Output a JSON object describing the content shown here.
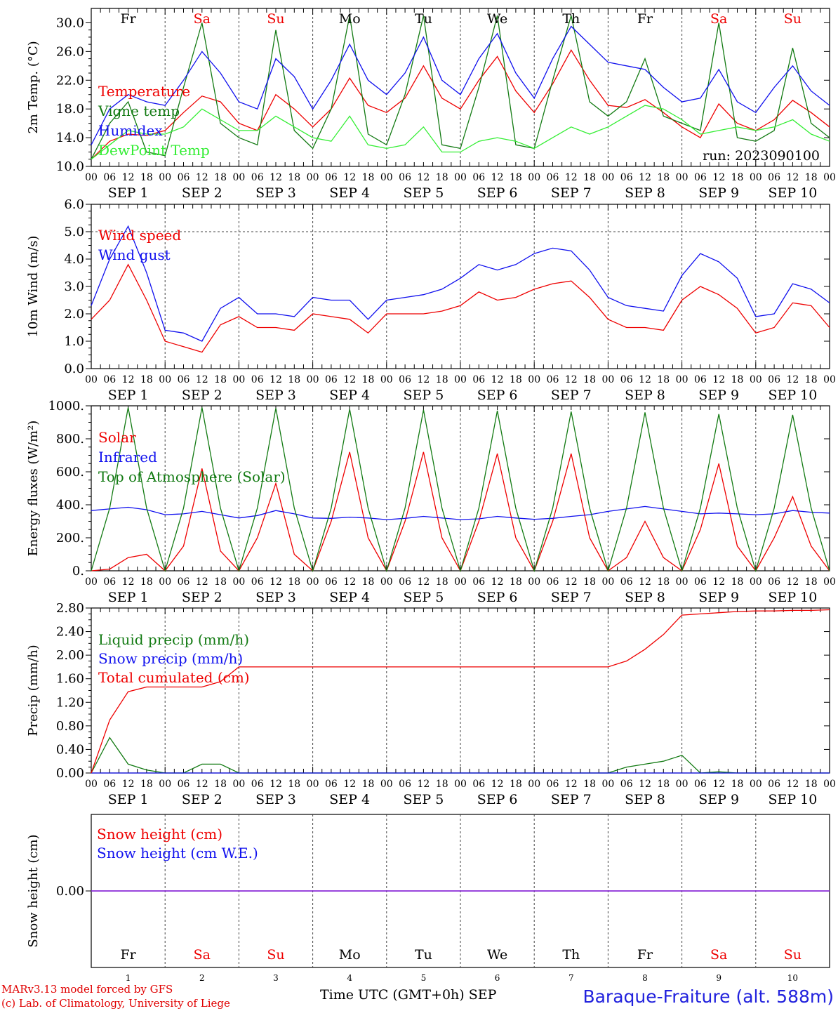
{
  "footer": {
    "credit_line1": "MARv3.13 model forced by GFS",
    "credit_line2": "(c) Lab. of Climatology, University of Liege",
    "x_axis_label": "Time UTC (GMT+0h) SEP",
    "station": "Baraque-Fraiture (alt. 588m)",
    "run": "run: 2023090100"
  },
  "time_axis": {
    "hour_ticks": [
      "00",
      "06",
      "12",
      "18"
    ],
    "end_tick": "00",
    "date_labels": [
      "SEP  1",
      "SEP  2",
      "SEP  3",
      "SEP  4",
      "SEP  5",
      "SEP  6",
      "SEP  7",
      "SEP  8",
      "SEP  9",
      "SEP 10"
    ],
    "weekdays": [
      "Fr",
      "Sa",
      "Su",
      "Mo",
      "Tu",
      "We",
      "Th",
      "Fr",
      "Sa",
      "Su"
    ],
    "weekend_flags": [
      false,
      true,
      true,
      false,
      false,
      false,
      false,
      false,
      true,
      true
    ],
    "day_numbers": [
      "1",
      "2",
      "3",
      "4",
      "5",
      "6",
      "7",
      "8",
      "9",
      "10"
    ]
  },
  "colors": {
    "red": "#ee0000",
    "blue": "#1010ee",
    "dkgreen": "#127a12",
    "ltgreen": "#33ee33",
    "purple": "#8a2be2",
    "weekend": "#ee0000",
    "grid": "#444444"
  },
  "chart_data": [
    {
      "type": "line",
      "ylabel": "2m Temp. (°C)",
      "ylim": [
        10,
        32
      ],
      "yticks": [
        10,
        14,
        18,
        22,
        26,
        30
      ],
      "ytick_labels": [
        "10.0",
        "14.0",
        "18.0",
        "22.0",
        "26.0",
        "30.0"
      ],
      "dashed_hline": null,
      "x": [
        "09-01 00",
        "09-01 06",
        "09-01 12",
        "09-01 18",
        "09-02 00",
        "09-02 06",
        "09-02 12",
        "09-02 18",
        "09-03 00",
        "09-03 06",
        "09-03 12",
        "09-03 18",
        "09-04 00",
        "09-04 06",
        "09-04 12",
        "09-04 18",
        "09-05 00",
        "09-05 06",
        "09-05 12",
        "09-05 18",
        "09-06 00",
        "09-06 06",
        "09-06 12",
        "09-06 18",
        "09-07 00",
        "09-07 06",
        "09-07 12",
        "09-07 18",
        "09-08 00",
        "09-08 06",
        "09-08 12",
        "09-08 18",
        "09-09 00",
        "09-09 06",
        "09-09 12",
        "09-09 18",
        "09-10 00",
        "09-10 06",
        "09-10 12",
        "09-10 18",
        "09-11 00"
      ],
      "series": [
        {
          "name": "Temperature",
          "color": "red",
          "values": [
            11,
            13.5,
            14.5,
            14.3,
            15,
            17.5,
            19.8,
            19,
            16,
            15,
            20,
            18,
            15.5,
            18,
            22.3,
            18.5,
            17.5,
            19.5,
            24,
            19.5,
            18,
            22,
            25.3,
            20.5,
            17.5,
            21.5,
            26.2,
            22,
            18.5,
            18.2,
            19.3,
            17.5,
            15.5,
            14,
            18.7,
            16,
            15,
            16.5,
            19.2,
            17.5,
            15.5
          ]
        },
        {
          "name": "Vigne temp",
          "color": "dkgreen",
          "values": [
            11,
            16,
            19,
            12,
            11.5,
            21,
            30,
            16,
            14,
            13,
            29,
            15,
            12.5,
            18,
            31,
            14.5,
            13,
            20,
            31,
            13,
            12.5,
            21,
            31,
            13,
            12.5,
            22,
            31,
            19,
            17,
            19,
            25,
            17,
            16,
            15,
            30,
            14,
            13.5,
            15,
            26.5,
            16,
            14
          ]
        },
        {
          "name": "Humidex",
          "color": "blue",
          "values": [
            13,
            18,
            20,
            19,
            18.5,
            22,
            26,
            23,
            19,
            18,
            25,
            22.5,
            18,
            22,
            27,
            22,
            20,
            23,
            28,
            22,
            20,
            25,
            28.5,
            23,
            19.5,
            25,
            29.5,
            27,
            24.5,
            24,
            23.5,
            21,
            19,
            19.5,
            23.5,
            19,
            17.5,
            21,
            24,
            20.5,
            18.5
          ]
        },
        {
          "name": "DewPoint Temp",
          "color": "ltgreen",
          "values": [
            11,
            13,
            15,
            14.5,
            14.5,
            15.5,
            18,
            16.5,
            15,
            15,
            17,
            15.5,
            14,
            13.5,
            17,
            13,
            12.5,
            13,
            15.5,
            12,
            12,
            13.5,
            14,
            13.5,
            12.5,
            14,
            15.5,
            14.5,
            15.5,
            17,
            18.5,
            18,
            16.5,
            14.5,
            15,
            15.5,
            15,
            15.5,
            16.5,
            14.5,
            13.5
          ]
        }
      ]
    },
    {
      "type": "line",
      "ylabel": "10m Wind (m/s)",
      "ylim": [
        0,
        6
      ],
      "yticks": [
        0,
        1,
        2,
        3,
        4,
        5,
        6
      ],
      "ytick_labels": [
        "0.0",
        "1.0",
        "2.0",
        "3.0",
        "4.0",
        "5.0",
        "6.0"
      ],
      "dashed_hline": 5,
      "x": [
        "09-01 00",
        "09-01 06",
        "09-01 12",
        "09-01 18",
        "09-02 00",
        "09-02 06",
        "09-02 12",
        "09-02 18",
        "09-03 00",
        "09-03 06",
        "09-03 12",
        "09-03 18",
        "09-04 00",
        "09-04 06",
        "09-04 12",
        "09-04 18",
        "09-05 00",
        "09-05 06",
        "09-05 12",
        "09-05 18",
        "09-06 00",
        "09-06 06",
        "09-06 12",
        "09-06 18",
        "09-07 00",
        "09-07 06",
        "09-07 12",
        "09-07 18",
        "09-08 00",
        "09-08 06",
        "09-08 12",
        "09-08 18",
        "09-09 00",
        "09-09 06",
        "09-09 12",
        "09-09 18",
        "09-10 00",
        "09-10 06",
        "09-10 12",
        "09-10 18",
        "09-11 00"
      ],
      "series": [
        {
          "name": "Wind speed",
          "color": "red",
          "values": [
            1.8,
            2.5,
            3.8,
            2.5,
            1.0,
            0.8,
            0.6,
            1.6,
            1.9,
            1.5,
            1.5,
            1.4,
            2.0,
            1.9,
            1.8,
            1.3,
            2.0,
            2.0,
            2.0,
            2.1,
            2.3,
            2.8,
            2.5,
            2.6,
            2.9,
            3.1,
            3.2,
            2.6,
            1.8,
            1.5,
            1.5,
            1.4,
            2.5,
            3.0,
            2.7,
            2.2,
            1.3,
            1.5,
            2.4,
            2.3,
            1.5
          ]
        },
        {
          "name": "Wind gust",
          "color": "blue",
          "values": [
            2.3,
            4.0,
            5.2,
            3.5,
            1.4,
            1.3,
            1.0,
            2.2,
            2.6,
            2.0,
            2.0,
            1.9,
            2.6,
            2.5,
            2.5,
            1.8,
            2.5,
            2.6,
            2.7,
            2.9,
            3.3,
            3.8,
            3.6,
            3.8,
            4.2,
            4.4,
            4.3,
            3.6,
            2.6,
            2.3,
            2.2,
            2.1,
            3.4,
            4.2,
            3.9,
            3.3,
            1.9,
            2.0,
            3.1,
            2.9,
            2.4
          ]
        }
      ]
    },
    {
      "type": "line",
      "ylabel": "Energy fluxes (W/m²)",
      "ylim": [
        0,
        1000
      ],
      "yticks": [
        0,
        200,
        400,
        600,
        800,
        1000
      ],
      "ytick_labels": [
        "0.",
        "200.",
        "400.",
        "600.",
        "800.",
        "1000."
      ],
      "dashed_hline": null,
      "x": [
        "09-01 00",
        "09-01 06",
        "09-01 12",
        "09-01 18",
        "09-02 00",
        "09-02 06",
        "09-02 12",
        "09-02 18",
        "09-03 00",
        "09-03 06",
        "09-03 12",
        "09-03 18",
        "09-04 00",
        "09-04 06",
        "09-04 12",
        "09-04 18",
        "09-05 00",
        "09-05 06",
        "09-05 12",
        "09-05 18",
        "09-06 00",
        "09-06 06",
        "09-06 12",
        "09-06 18",
        "09-07 00",
        "09-07 06",
        "09-07 12",
        "09-07 18",
        "09-08 00",
        "09-08 06",
        "09-08 12",
        "09-08 18",
        "09-09 00",
        "09-09 06",
        "09-09 12",
        "09-09 18",
        "09-10 00",
        "09-10 06",
        "09-10 12",
        "09-10 18",
        "09-11 00"
      ],
      "series": [
        {
          "name": "Solar",
          "color": "red",
          "values": [
            0,
            10,
            80,
            100,
            0,
            150,
            620,
            120,
            0,
            200,
            530,
            100,
            0,
            300,
            720,
            200,
            0,
            300,
            720,
            200,
            0,
            300,
            710,
            200,
            0,
            300,
            710,
            200,
            0,
            80,
            300,
            80,
            0,
            250,
            650,
            150,
            0,
            200,
            450,
            150,
            0
          ]
        },
        {
          "name": "Infrared",
          "color": "blue",
          "values": [
            365,
            375,
            385,
            370,
            340,
            345,
            360,
            340,
            320,
            335,
            365,
            345,
            320,
            318,
            325,
            320,
            310,
            318,
            330,
            320,
            310,
            315,
            330,
            320,
            312,
            318,
            330,
            340,
            360,
            375,
            390,
            375,
            360,
            345,
            350,
            345,
            340,
            345,
            365,
            355,
            350
          ]
        },
        {
          "name": "Top of Atmosphere (Solar)",
          "color": "dkgreen",
          "values": [
            0,
            380,
            990,
            380,
            0,
            380,
            990,
            380,
            0,
            380,
            985,
            380,
            0,
            380,
            980,
            380,
            0,
            380,
            975,
            380,
            0,
            380,
            970,
            380,
            0,
            380,
            965,
            380,
            0,
            380,
            960,
            380,
            0,
            380,
            950,
            380,
            0,
            380,
            945,
            380,
            0
          ]
        }
      ]
    },
    {
      "type": "line",
      "ylabel": "Precip (mm/h)",
      "ylim": [
        0,
        2.8
      ],
      "yticks": [
        0,
        0.4,
        0.8,
        1.2,
        1.6,
        2.0,
        2.4,
        2.8
      ],
      "ytick_labels": [
        "0.00",
        "0.40",
        "0.80",
        "1.20",
        "1.60",
        "2.00",
        "2.40",
        "2.80"
      ],
      "dashed_hline": null,
      "x": [
        "09-01 00",
        "09-01 06",
        "09-01 12",
        "09-01 18",
        "09-02 00",
        "09-02 06",
        "09-02 12",
        "09-02 18",
        "09-03 00",
        "09-03 06",
        "09-03 12",
        "09-03 18",
        "09-04 00",
        "09-04 06",
        "09-04 12",
        "09-04 18",
        "09-05 00",
        "09-05 06",
        "09-05 12",
        "09-05 18",
        "09-06 00",
        "09-06 06",
        "09-06 12",
        "09-06 18",
        "09-07 00",
        "09-07 06",
        "09-07 12",
        "09-07 18",
        "09-08 00",
        "09-08 06",
        "09-08 12",
        "09-08 18",
        "09-09 00",
        "09-09 06",
        "09-09 12",
        "09-09 18",
        "09-10 00",
        "09-10 06",
        "09-10 12",
        "09-10 18",
        "09-11 00"
      ],
      "series": [
        {
          "name": "Liquid precip (mm/h)",
          "color": "dkgreen",
          "values": [
            0,
            0.6,
            0.15,
            0.05,
            0,
            0,
            0.15,
            0.15,
            0,
            0,
            0,
            0,
            0,
            0,
            0,
            0,
            0,
            0,
            0,
            0,
            0,
            0,
            0,
            0,
            0,
            0,
            0,
            0,
            0,
            0.1,
            0.15,
            0.2,
            0.3,
            0,
            0.02,
            0,
            0,
            0,
            0,
            0,
            0
          ]
        },
        {
          "name": "Snow precip (mm/h)",
          "color": "blue",
          "values": [
            0,
            0,
            0,
            0,
            0,
            0,
            0,
            0,
            0,
            0,
            0,
            0,
            0,
            0,
            0,
            0,
            0,
            0,
            0,
            0,
            0,
            0,
            0,
            0,
            0,
            0,
            0,
            0,
            0,
            0,
            0,
            0,
            0,
            0,
            0,
            0,
            0,
            0,
            0,
            0,
            0
          ]
        },
        {
          "name": "Total cumulated (cm)",
          "color": "red",
          "values": [
            0,
            0.9,
            1.38,
            1.46,
            1.46,
            1.46,
            1.46,
            1.55,
            1.8,
            1.8,
            1.8,
            1.8,
            1.8,
            1.8,
            1.8,
            1.8,
            1.8,
            1.8,
            1.8,
            1.8,
            1.8,
            1.8,
            1.8,
            1.8,
            1.8,
            1.8,
            1.8,
            1.8,
            1.8,
            1.9,
            2.1,
            2.35,
            2.68,
            2.7,
            2.72,
            2.74,
            2.75,
            2.75,
            2.76,
            2.76,
            2.77
          ]
        }
      ]
    },
    {
      "type": "line",
      "ylabel": "Snow height (cm)",
      "ylim": [
        -1,
        1
      ],
      "yticks": [
        0
      ],
      "ytick_labels": [
        "0.00"
      ],
      "dashed_hline": null,
      "x": [
        "09-01 00",
        "09-11 00"
      ],
      "series": [
        {
          "name": "Snow height (cm)",
          "color": "red",
          "values": [
            0,
            0
          ]
        },
        {
          "name": "Snow height (cm W.E.)",
          "color": "blue",
          "values": [
            0,
            0
          ]
        }
      ]
    }
  ]
}
